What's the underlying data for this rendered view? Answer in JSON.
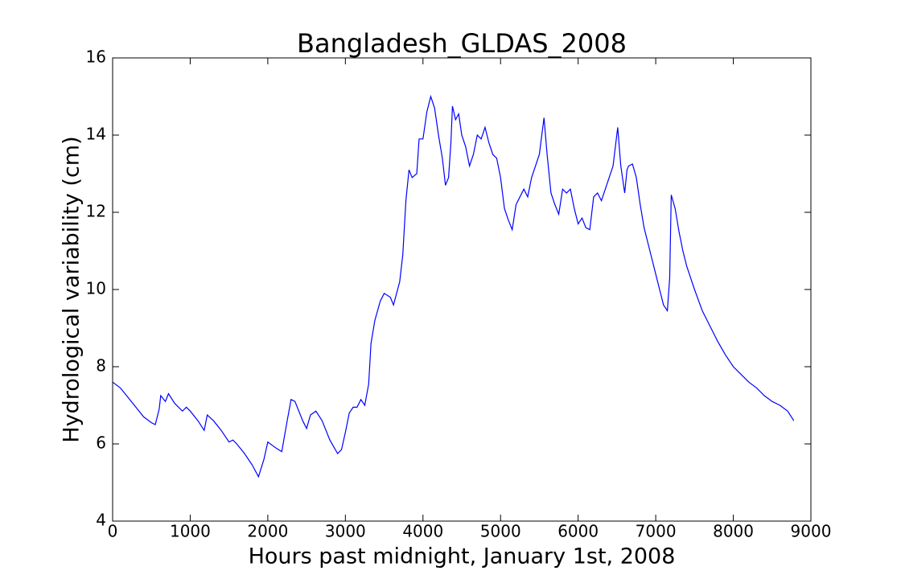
{
  "chart_data": {
    "type": "line",
    "title": "Bangladesh_GLDAS_2008",
    "x_label": "Hours past midnight, January 1st, 2008",
    "y_label": "Hydrological variability (cm)",
    "color": "#0000ff",
    "x": [
      0,
      100,
      200,
      300,
      400,
      500,
      550,
      600,
      620,
      680,
      720,
      800,
      900,
      950,
      1000,
      1100,
      1180,
      1220,
      1300,
      1400,
      1500,
      1550,
      1600,
      1700,
      1800,
      1880,
      1950,
      2000,
      2100,
      2180,
      2250,
      2300,
      2350,
      2450,
      2500,
      2550,
      2620,
      2700,
      2800,
      2900,
      2950,
      3000,
      3050,
      3100,
      3150,
      3200,
      3250,
      3300,
      3330,
      3380,
      3450,
      3500,
      3580,
      3620,
      3700,
      3740,
      3780,
      3820,
      3860,
      3920,
      3950,
      4000,
      4050,
      4100,
      4150,
      4200,
      4250,
      4290,
      4330,
      4360,
      4380,
      4420,
      4460,
      4500,
      4550,
      4600,
      4650,
      4700,
      4750,
      4800,
      4850,
      4900,
      4950,
      5000,
      5050,
      5100,
      5150,
      5200,
      5250,
      5300,
      5350,
      5400,
      5450,
      5500,
      5560,
      5600,
      5650,
      5700,
      5750,
      5800,
      5850,
      5900,
      5950,
      6000,
      6050,
      6100,
      6150,
      6200,
      6250,
      6300,
      6350,
      6400,
      6450,
      6510,
      6550,
      6600,
      6630,
      6650,
      6700,
      6750,
      6800,
      6850,
      6900,
      6950,
      7000,
      7050,
      7100,
      7150,
      7180,
      7200,
      7250,
      7300,
      7350,
      7400,
      7450,
      7500,
      7600,
      7700,
      7800,
      7900,
      8000,
      8100,
      8200,
      8300,
      8400,
      8500,
      8600,
      8700,
      8780
    ],
    "values": [
      7.6,
      7.45,
      7.2,
      6.95,
      6.7,
      6.55,
      6.5,
      6.9,
      7.25,
      7.1,
      7.3,
      7.05,
      6.85,
      6.95,
      6.85,
      6.6,
      6.35,
      6.75,
      6.6,
      6.35,
      6.05,
      6.1,
      6.0,
      5.75,
      5.45,
      5.15,
      5.6,
      6.05,
      5.9,
      5.8,
      6.6,
      7.15,
      7.1,
      6.6,
      6.4,
      6.75,
      6.85,
      6.6,
      6.1,
      5.75,
      5.85,
      6.3,
      6.8,
      6.95,
      6.95,
      7.15,
      7.0,
      7.55,
      8.6,
      9.2,
      9.7,
      9.9,
      9.8,
      9.6,
      10.2,
      10.9,
      12.3,
      13.1,
      12.9,
      13.0,
      13.9,
      13.9,
      14.6,
      15.0,
      14.7,
      14.0,
      13.4,
      12.7,
      12.9,
      13.8,
      14.75,
      14.4,
      14.55,
      14.0,
      13.7,
      13.2,
      13.5,
      14.0,
      13.9,
      14.2,
      13.8,
      13.5,
      13.4,
      12.9,
      12.1,
      11.8,
      11.55,
      12.2,
      12.4,
      12.6,
      12.4,
      12.9,
      13.2,
      13.5,
      14.45,
      13.5,
      12.5,
      12.2,
      11.95,
      12.6,
      12.5,
      12.6,
      12.1,
      11.7,
      11.85,
      11.6,
      11.55,
      12.4,
      12.5,
      12.3,
      12.6,
      12.9,
      13.2,
      14.2,
      13.2,
      12.5,
      13.1,
      13.2,
      13.25,
      12.9,
      12.2,
      11.6,
      11.2,
      10.8,
      10.4,
      10.0,
      9.6,
      9.45,
      10.3,
      12.45,
      12.1,
      11.5,
      11.0,
      10.6,
      10.3,
      10.0,
      9.45,
      9.05,
      8.65,
      8.3,
      8.0,
      7.8,
      7.6,
      7.45,
      7.25,
      7.1,
      7.0,
      6.85,
      6.6
    ],
    "xlim": [
      0,
      9000
    ],
    "xticks": [
      0,
      1000,
      2000,
      3000,
      4000,
      5000,
      6000,
      7000,
      8000,
      9000
    ],
    "ylim": [
      4,
      16
    ],
    "yticks": [
      4,
      6,
      8,
      10,
      12,
      14,
      16
    ]
  }
}
